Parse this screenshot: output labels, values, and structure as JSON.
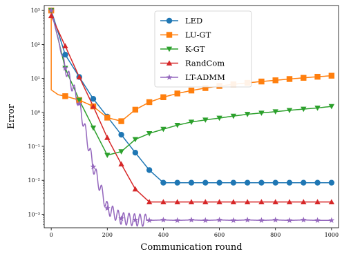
{
  "chart_data": {
    "type": "line",
    "title": "",
    "xlabel": "Communication round",
    "ylabel": "Error",
    "xlim": [
      -25,
      1025
    ],
    "ylim": [
      0.0004,
      1400
    ],
    "yscale": "log",
    "xticks": [
      0,
      200,
      400,
      600,
      800,
      1000
    ],
    "xtick_labels": [
      "0",
      "200",
      "400",
      "600",
      "800",
      "1000"
    ],
    "yticks": [
      0.001,
      0.01,
      0.1,
      1,
      10,
      100,
      1000
    ],
    "ytick_labels": [
      "10⁻³",
      "10⁻²",
      "10⁻¹",
      "10⁰",
      "10¹",
      "10²",
      "10³"
    ],
    "legend_position": "top-center",
    "grid": false,
    "series": [
      {
        "name": "LED",
        "color": "#1f77b4",
        "marker": "circle",
        "x": [
          0,
          50,
          100,
          150,
          200,
          250,
          300,
          350,
          400,
          450,
          500,
          550,
          600,
          650,
          700,
          750,
          800,
          850,
          900,
          950,
          1000
        ],
        "y": [
          1000,
          50,
          11,
          2.5,
          0.75,
          0.22,
          0.065,
          0.02,
          0.0085,
          0.0085,
          0.0085,
          0.0085,
          0.0085,
          0.0085,
          0.0085,
          0.0085,
          0.0085,
          0.0085,
          0.0085,
          0.0085,
          0.0085
        ]
      },
      {
        "name": "LU-GT",
        "color": "#ff7f0e",
        "marker": "square",
        "x": [
          0,
          50,
          100,
          150,
          200,
          250,
          300,
          350,
          400,
          450,
          500,
          550,
          600,
          650,
          700,
          750,
          800,
          850,
          900,
          950,
          1000
        ],
        "y": [
          1000,
          3.0,
          2.3,
          1.5,
          0.7,
          0.55,
          1.2,
          2.0,
          2.8,
          3.6,
          4.4,
          5.2,
          6.0,
          6.7,
          7.4,
          8.1,
          8.8,
          9.6,
          10.4,
          11.2,
          12.0
        ]
      },
      {
        "name": "K-GT",
        "color": "#2ca02c",
        "marker": "triangle-down",
        "x": [
          0,
          50,
          100,
          150,
          200,
          250,
          300,
          350,
          400,
          450,
          500,
          550,
          600,
          650,
          700,
          750,
          800,
          850,
          900,
          950,
          1000
        ],
        "y": [
          1000,
          20,
          2.3,
          0.35,
          0.055,
          0.07,
          0.16,
          0.24,
          0.32,
          0.42,
          0.52,
          0.6,
          0.68,
          0.78,
          0.88,
          0.96,
          1.05,
          1.15,
          1.25,
          1.35,
          1.5
        ]
      },
      {
        "name": "RandCom",
        "color": "#d62728",
        "marker": "triangle-up",
        "x": [
          0,
          50,
          100,
          150,
          200,
          250,
          300,
          350,
          400,
          450,
          500,
          550,
          600,
          650,
          700,
          750,
          800,
          850,
          900,
          950,
          1000
        ],
        "y": [
          700,
          90,
          11,
          1.5,
          0.18,
          0.03,
          0.0055,
          0.0023,
          0.0023,
          0.0023,
          0.0023,
          0.0023,
          0.0023,
          0.0023,
          0.0023,
          0.0023,
          0.0023,
          0.0023,
          0.0023,
          0.0023,
          0.0023
        ]
      },
      {
        "name": "LT-ADMM",
        "color": "#9467bd",
        "marker": "star",
        "x": [
          0,
          50,
          100,
          150,
          200,
          250,
          300,
          350,
          400,
          450,
          500,
          550,
          600,
          650,
          700,
          750,
          800,
          850,
          900,
          950,
          1000
        ],
        "y": [
          1000,
          20,
          1.8,
          0.025,
          0.0015,
          0.00075,
          0.00068,
          0.00066,
          0.00068,
          0.00066,
          0.00068,
          0.00066,
          0.00068,
          0.00066,
          0.00068,
          0.00066,
          0.00068,
          0.00066,
          0.00068,
          0.00066,
          0.00066
        ]
      }
    ]
  }
}
